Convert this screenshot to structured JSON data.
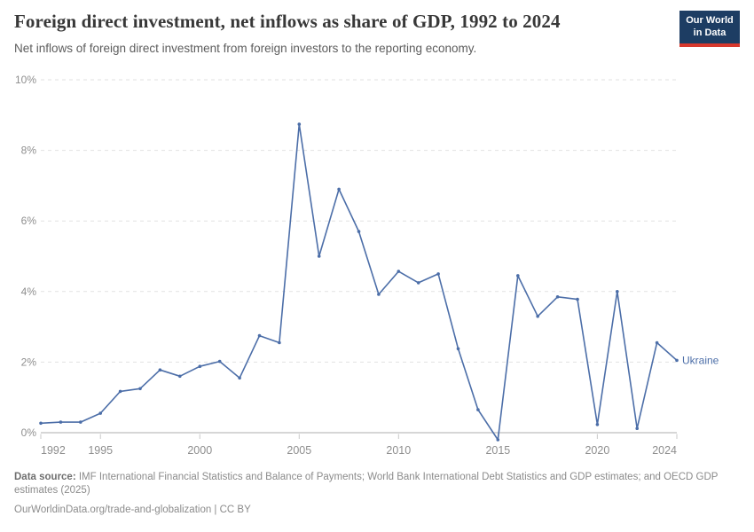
{
  "header": {
    "title": "Foreign direct investment, net inflows as share of GDP, 1992 to 2024",
    "subtitle": "Net inflows of foreign direct investment from foreign investors to the reporting economy.",
    "logo": {
      "line1": "Our World",
      "line2": "in Data"
    }
  },
  "chart_data": {
    "type": "line",
    "title": "Foreign direct investment, net inflows as share of GDP, 1992 to 2024",
    "x": [
      1992,
      1993,
      1994,
      1995,
      1996,
      1997,
      1998,
      1999,
      2000,
      2001,
      2002,
      2003,
      2004,
      2005,
      2006,
      2007,
      2008,
      2009,
      2010,
      2011,
      2012,
      2013,
      2014,
      2015,
      2016,
      2017,
      2018,
      2019,
      2020,
      2021,
      2022,
      2023,
      2024
    ],
    "series": [
      {
        "name": "Ukraine",
        "color": "#4c6ea8",
        "values": [
          0.27,
          0.3,
          0.3,
          0.55,
          1.17,
          1.25,
          1.78,
          1.6,
          1.88,
          2.02,
          1.55,
          2.75,
          2.55,
          8.74,
          5.0,
          6.9,
          5.7,
          3.92,
          4.57,
          4.25,
          4.5,
          2.38,
          0.65,
          -0.2,
          4.45,
          3.3,
          3.85,
          3.78,
          0.23,
          4.0,
          0.12,
          2.55,
          2.05
        ]
      }
    ],
    "xlabel": "",
    "ylabel": "",
    "xlim": [
      1992,
      2024
    ],
    "ylim": [
      -0.5,
      10
    ],
    "yticks": [
      0,
      2,
      4,
      6,
      8,
      10
    ],
    "ytick_suffix": "%",
    "xticks": [
      1992,
      1995,
      2000,
      2005,
      2010,
      2015,
      2020,
      2024
    ],
    "grid": "horizontal-dashed",
    "legend_position": "end-of-line-label"
  },
  "footer": {
    "datasource_label": "Data source:",
    "datasource_text": " IMF International Financial Statistics and Balance of Payments; World Bank International Debt Statistics and GDP estimates; and OECD GDP estimates (2025)",
    "link_line": "OurWorldinData.org/trade-and-globalization | CC BY"
  },
  "colors": {
    "line": "#4c6ea8",
    "logo_bg": "#1d3d63",
    "logo_bar": "#d7382d",
    "grid": "#e2e2e2",
    "axis_text": "#8e8e8e"
  }
}
